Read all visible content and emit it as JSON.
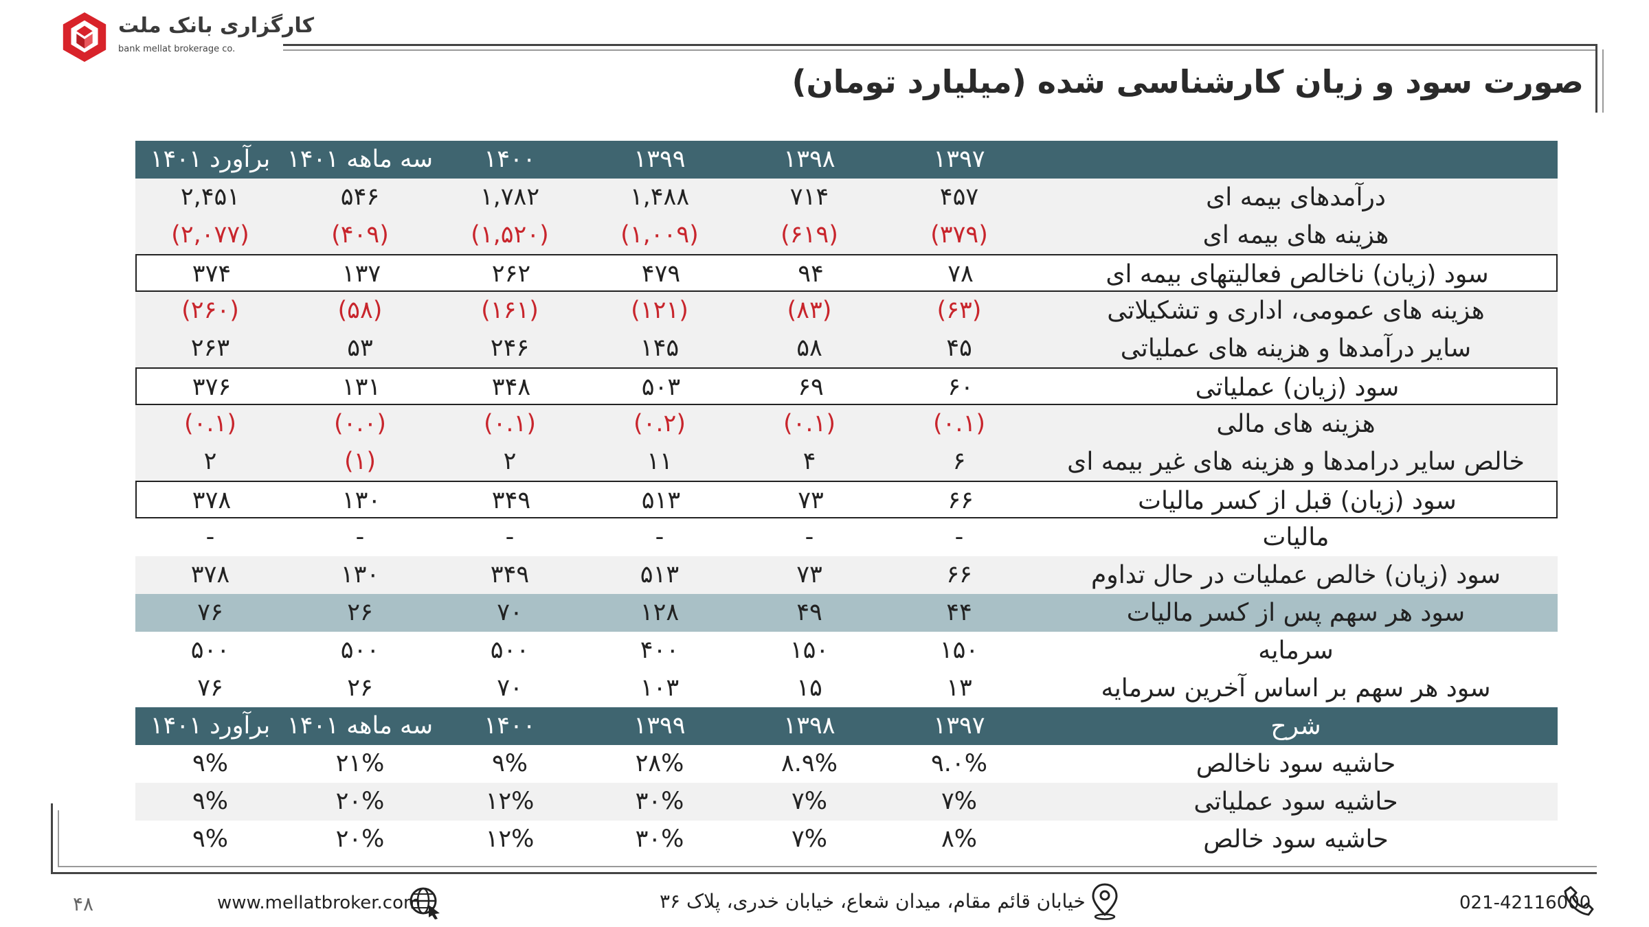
{
  "brand": {
    "name_fa": "کارگزاری بانک ملت",
    "name_en": "bank mellat brokerage co."
  },
  "title": "صورت سود و زیان کارشناسی شده (میلیارد تومان)",
  "columns": [
    "برآورد ۱۴۰۱",
    "سه ماهه ۱۴۰۱",
    "۱۴۰۰",
    "۱۳۹۹",
    "۱۳۹۸",
    "۱۳۹۷"
  ],
  "rows": [
    {
      "label": "درآمدهای بیمه ای",
      "values": [
        "۲,۴۵۱",
        "۵۴۶",
        "۱,۷۸۲",
        "۱,۴۸۸",
        "۷۱۴",
        "۴۵۷"
      ],
      "neg": false
    },
    {
      "label": "هزینه های بیمه ای",
      "values": [
        "(۲,۰۷۷)",
        "(۴۰۹)",
        "(۱,۵۲۰)",
        "(۱,۰۰۹)",
        "(۶۱۹)",
        "(۳۷۹)"
      ],
      "neg": true
    },
    {
      "label": "سود (زیان) ناخالص فعالیتهای بیمه ای",
      "values": [
        "۳۷۴",
        "۱۳۷",
        "۲۶۲",
        "۴۷۹",
        "۹۴",
        "۷۸"
      ],
      "neg": false
    },
    {
      "label": "هزینه های عمومی، اداری و تشکیلاتی",
      "values": [
        "(۲۶۰)",
        "(۵۸)",
        "(۱۶۱)",
        "(۱۲۱)",
        "(۸۳)",
        "(۶۳)"
      ],
      "neg": true
    },
    {
      "label": "سایر درآمدها و هزینه های عملیاتی",
      "values": [
        "۲۶۳",
        "۵۳",
        "۲۴۶",
        "۱۴۵",
        "۵۸",
        "۴۵"
      ],
      "neg": false
    },
    {
      "label": "سود (زیان) عملیاتی",
      "values": [
        "۳۷۶",
        "۱۳۱",
        "۳۴۸",
        "۵۰۳",
        "۶۹",
        "۶۰"
      ],
      "neg": false
    },
    {
      "label": "هزینه های مالی",
      "values": [
        "(۰.۱)",
        "(۰.۰)",
        "(۰.۱)",
        "(۰.۲)",
        "(۰.۱)",
        "(۰.۱)"
      ],
      "neg": true
    },
    {
      "label": "خالص سایر درامدها و هزینه های غیر بیمه ای",
      "values": [
        "۲",
        "(۱)",
        "۲",
        "۱۱",
        "۴",
        "۶"
      ],
      "neg": false
    },
    {
      "label": "سود (زیان) قبل از کسر مالیات",
      "values": [
        "۳۷۸",
        "۱۳۰",
        "۳۴۹",
        "۵۱۳",
        "۷۳",
        "۶۶"
      ],
      "neg": false
    },
    {
      "label": "مالیات",
      "values": [
        "-",
        "-",
        "-",
        "-",
        "-",
        "-"
      ],
      "neg": false
    },
    {
      "label": "سود (زیان) خالص عملیات در حال تداوم",
      "values": [
        "۳۷۸",
        "۱۳۰",
        "۳۴۹",
        "۵۱۳",
        "۷۳",
        "۶۶"
      ],
      "neg": false
    },
    {
      "label": "سود هر سهم پس از کسر مالیات",
      "values": [
        "۷۶",
        "۲۶",
        "۷۰",
        "۱۲۸",
        "۴۹",
        "۴۴"
      ],
      "neg": false
    },
    {
      "label": "سرمایه",
      "values": [
        "۵۰۰",
        "۵۰۰",
        "۵۰۰",
        "۴۰۰",
        "۱۵۰",
        "۱۵۰"
      ],
      "neg": false
    },
    {
      "label": "سود هر سهم بر اساس آخرین سرمایه",
      "values": [
        "۷۶",
        "۲۶",
        "۷۰",
        "۱۰۳",
        "۱۵",
        "۱۳"
      ],
      "neg": false
    }
  ],
  "ratios_header": "شرح",
  "ratios": [
    {
      "label": "حاشیه سود ناخالص",
      "values": [
        "۹%",
        "۲۱%",
        "۹%",
        "۲۸%",
        "۸.۹%",
        "۹.۰%"
      ]
    },
    {
      "label": "حاشیه سود عملیاتی",
      "values": [
        "۹%",
        "۲۰%",
        "۱۲%",
        "۳۰%",
        "۷%",
        "۷%"
      ]
    },
    {
      "label": "حاشیه سود خالص",
      "values": [
        "۹%",
        "۲۰%",
        "۱۲%",
        "۳۰%",
        "۷%",
        "۸%"
      ]
    }
  ],
  "footer": {
    "page_number": "۴۸",
    "website": "www.mellatbroker.com",
    "address": "خیابان قائم مقام، میدان شعاع، خیابان خدری، پلاک ۳۶",
    "phone": "021-42116000"
  },
  "colors": {
    "header_bg": "#3f6570",
    "eps_bg": "#a9c0c6",
    "negative": "#c8252c",
    "logo_red": "#d8232a"
  }
}
